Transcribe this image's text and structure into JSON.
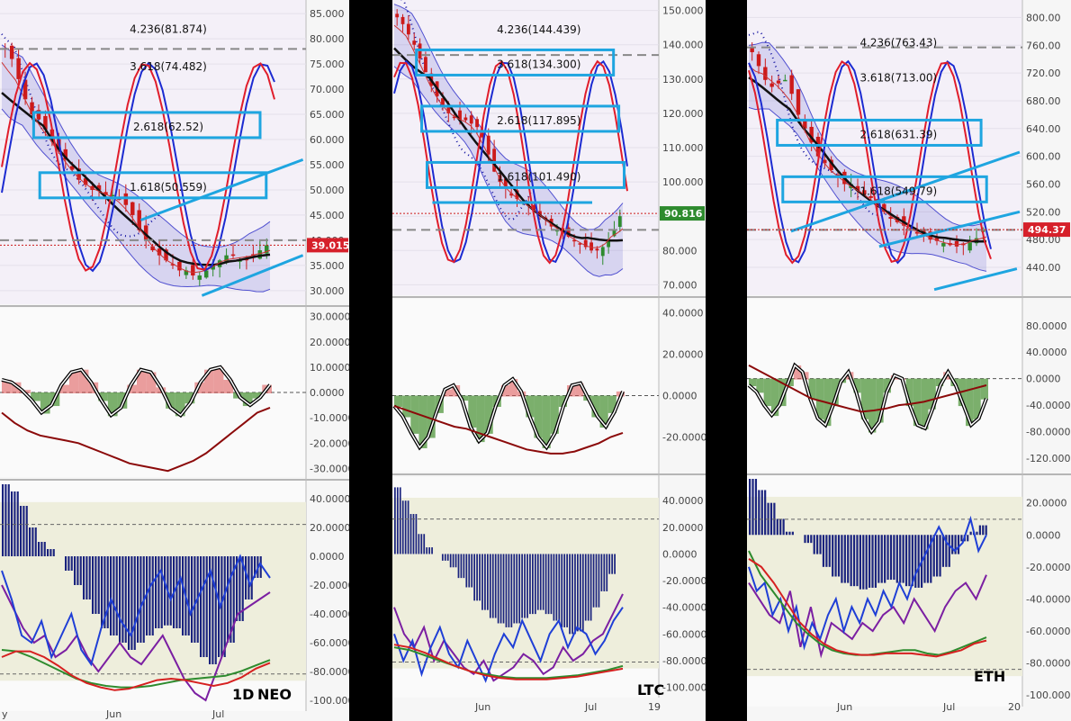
{
  "chart_data": [
    {
      "type": "candlestick",
      "asset_label": "NEO",
      "timeframe_label": "1D",
      "date_ticks": [
        "y",
        "Jun",
        "Jul"
      ],
      "price_ticks": [
        "85.000",
        "80.000",
        "75.000",
        "70.000",
        "65.000",
        "60.000",
        "55.000",
        "50.000",
        "45.000",
        "40.000",
        "35.000",
        "30.000"
      ],
      "price_range": [
        28,
        87
      ],
      "last_price": "39.015",
      "fib_levels": [
        {
          "label": "4.236(81.874)",
          "price": 81.874,
          "boxed": false
        },
        {
          "label": "3.618(74.482)",
          "price": 74.482,
          "boxed": false
        },
        {
          "label": "2.618(62.52)",
          "price": 62.52,
          "boxed": true
        },
        {
          "label": "1.618(50.559)",
          "price": 50.559,
          "boxed": true
        }
      ],
      "dashed_level": 78,
      "support_level": 40,
      "close": [
        78,
        76,
        72,
        68,
        65,
        64,
        62,
        60,
        58,
        56,
        54,
        52,
        51,
        50,
        50,
        49,
        49,
        48,
        47,
        45,
        42,
        40,
        38,
        37,
        36,
        35,
        34,
        34,
        33,
        33,
        34,
        35,
        36,
        37,
        37,
        36,
        36,
        37,
        38,
        39
      ],
      "trend_lines": [
        {
          "from": [
            0.46,
            44
          ],
          "to": [
            0.99,
            56
          ]
        },
        {
          "from": [
            0.66,
            29
          ],
          "to": [
            0.99,
            37
          ]
        }
      ],
      "osc_ticks": [
        "30.0000",
        "20.0000",
        "10.0000",
        "0.0000",
        "-10.0000",
        "-20.0000",
        "-30.0000"
      ],
      "osc_range": [
        -32,
        32
      ],
      "osc": [
        5,
        4,
        1,
        -3,
        -8,
        -5,
        3,
        8,
        9,
        4,
        -3,
        -9,
        -6,
        3,
        9,
        8,
        2,
        -6,
        -9,
        -4,
        4,
        9,
        10,
        5,
        -2,
        -5,
        -2,
        3
      ],
      "osc_slow": [
        -8,
        -12,
        -15,
        -17,
        -18,
        -19,
        -20,
        -22,
        -24,
        -26,
        -28,
        -29,
        -30,
        -31,
        -29,
        -27,
        -24,
        -20,
        -16,
        -12,
        -8,
        -6
      ],
      "mom_ticks": [
        "40.0000",
        "20.0000",
        "0.0000",
        "-20.0000",
        "-40.0000",
        "-60.0000",
        "-80.0000",
        "-100.0000"
      ],
      "mom_range": [
        -105,
        50
      ],
      "mom_hist": [
        50,
        45,
        35,
        20,
        10,
        5,
        0,
        -10,
        -20,
        -30,
        -40,
        -50,
        -55,
        -60,
        -65,
        -60,
        -55,
        -50,
        -48,
        -50,
        -55,
        -60,
        -70,
        -75,
        -70,
        -60,
        -45,
        -30,
        -15,
        0
      ],
      "mom_fast": [
        -10,
        -30,
        -55,
        -60,
        -45,
        -70,
        -55,
        -40,
        -65,
        -75,
        -50,
        -30,
        -45,
        -55,
        -35,
        -20,
        -10,
        -30,
        -15,
        -40,
        -25,
        -10,
        -35,
        -15,
        0,
        -20,
        -5,
        -15
      ],
      "mom_slow": [
        -20,
        -35,
        -50,
        -60,
        -55,
        -70,
        -65,
        -55,
        -70,
        -80,
        -70,
        -60,
        -70,
        -75,
        -65,
        -55,
        -70,
        -85,
        -95,
        -100,
        -80,
        -60,
        -40,
        -35,
        -30,
        -25
      ],
      "mom_green": [
        -65,
        -66,
        -70,
        -75,
        -80,
        -85,
        -88,
        -90,
        -91,
        -91,
        -90,
        -88,
        -86,
        -85,
        -84,
        -83,
        -80,
        -76,
        -72
      ],
      "mom_red": [
        -70,
        -66,
        -66,
        -70,
        -76,
        -83,
        -88,
        -91,
        -93,
        -92,
        -89,
        -86,
        -85,
        -86,
        -88,
        -90,
        -88,
        -84,
        -78,
        -74
      ]
    },
    {
      "type": "candlestick",
      "asset_label": "LTC",
      "date_ticks": [
        "Jun",
        "Jul",
        "19"
      ],
      "price_ticks": [
        "150.000",
        "140.000",
        "130.000",
        "120.000",
        "110.000",
        "100.000",
        "90.000",
        "80.000",
        "70.000"
      ],
      "price_range": [
        68,
        152
      ],
      "last_price": "90.816",
      "fib_levels": [
        {
          "label": "4.236(144.439)",
          "price": 144.439,
          "boxed": false
        },
        {
          "label": "3.618(134.300)",
          "price": 134.3,
          "boxed": true
        },
        {
          "label": "2.618(117.895)",
          "price": 117.895,
          "boxed": true
        },
        {
          "label": "1.618(101.490)",
          "price": 101.49,
          "boxed": true
        }
      ],
      "dashed_level": 137,
      "support_level": 86,
      "close": [
        148,
        146,
        143,
        140,
        136,
        132,
        128,
        125,
        122,
        120,
        119,
        118,
        118,
        117,
        116,
        113,
        108,
        103,
        100,
        98,
        96,
        95,
        94,
        93,
        92,
        90,
        89,
        87,
        86,
        85,
        84,
        83,
        82,
        81,
        80,
        80,
        81,
        83,
        86,
        90
      ],
      "trend_lines": [
        {
          "from": [
            0.15,
            94
          ],
          "to": [
            0.75,
            94
          ]
        }
      ],
      "osc_ticks": [
        "40.0000",
        "20.0000",
        "0.0000",
        "-20.0000"
      ],
      "osc_range": [
        -35,
        45
      ],
      "osc": [
        -5,
        -10,
        -18,
        -25,
        -20,
        -8,
        3,
        5,
        -2,
        -15,
        -22,
        -18,
        -5,
        5,
        8,
        2,
        -10,
        -20,
        -25,
        -18,
        -5,
        5,
        6,
        -2,
        -10,
        -15,
        -8,
        2
      ],
      "osc_slow": [
        -5,
        -7,
        -9,
        -11,
        -13,
        -15,
        -16,
        -18,
        -20,
        -22,
        -24,
        -26,
        -27,
        -28,
        -28,
        -27,
        -25,
        -23,
        -20,
        -18
      ],
      "mom_ticks": [
        "40.0000",
        "20.0000",
        "0.0000",
        "-20.0000",
        "-40.0000",
        "-60.0000",
        "-80.0000",
        "-100.0000"
      ],
      "mom_range": [
        -105,
        55
      ],
      "mom_hist": [
        50,
        40,
        30,
        15,
        5,
        0,
        -5,
        -10,
        -18,
        -25,
        -35,
        -42,
        -48,
        -52,
        -55,
        -52,
        -48,
        -45,
        -42,
        -45,
        -50,
        -55,
        -60,
        -58,
        -50,
        -40,
        -28,
        -15,
        0
      ],
      "mom_fast": [
        -60,
        -80,
        -65,
        -90,
        -70,
        -55,
        -75,
        -85,
        -65,
        -80,
        -95,
        -75,
        -60,
        -70,
        -50,
        -65,
        -80,
        -60,
        -50,
        -70,
        -55,
        -60,
        -75,
        -65,
        -50,
        -40
      ],
      "mom_slow": [
        -40,
        -60,
        -70,
        -55,
        -80,
        -65,
        -75,
        -85,
        -90,
        -80,
        -95,
        -90,
        -85,
        -75,
        -80,
        -90,
        -85,
        -70,
        -80,
        -75,
        -65,
        -60,
        -45,
        -30
      ],
      "mom_green": [
        -70,
        -72,
        -76,
        -80,
        -84,
        -88,
        -90,
        -92,
        -93,
        -93,
        -93,
        -92,
        -91,
        -89,
        -87,
        -84
      ],
      "mom_red": [
        -68,
        -70,
        -74,
        -79,
        -84,
        -88,
        -91,
        -93,
        -94,
        -94,
        -94,
        -93,
        -92,
        -90,
        -88,
        -86
      ]
    },
    {
      "type": "candlestick",
      "asset_label": "ETH",
      "date_ticks": [
        "Jun",
        "Jul",
        "20"
      ],
      "price_ticks": [
        "800.00",
        "760.00",
        "720.00",
        "680.00",
        "640.00",
        "600.00",
        "560.00",
        "520.00",
        "480.00",
        "440.00"
      ],
      "price_range": [
        405,
        820
      ],
      "last_price": "494.37",
      "fib_levels": [
        {
          "label": "4.236(763.43)",
          "price": 763.43,
          "boxed": false
        },
        {
          "label": "3.618(713.00)",
          "price": 713.0,
          "boxed": false
        },
        {
          "label": "2.618(631.39)",
          "price": 631.39,
          "boxed": true
        },
        {
          "label": "1.618(549.79)",
          "price": 549.79,
          "boxed": true
        }
      ],
      "dashed_level": 757,
      "support_level": 494,
      "close": [
        750,
        730,
        710,
        700,
        705,
        710,
        690,
        660,
        640,
        620,
        600,
        590,
        580,
        570,
        560,
        560,
        550,
        545,
        540,
        530,
        520,
        510,
        505,
        500,
        495,
        490,
        485,
        480,
        478,
        475,
        472,
        470,
        472,
        476,
        482,
        494
      ],
      "trend_lines": [
        {
          "from": [
            0.16,
            492
          ],
          "to": [
            0.99,
            606
          ]
        },
        {
          "from": [
            0.48,
            470
          ],
          "to": [
            0.99,
            520
          ]
        },
        {
          "from": [
            0.68,
            408
          ],
          "to": [
            0.98,
            438
          ]
        }
      ],
      "osc_ticks": [
        "80.0000",
        "40.0000",
        "0.0000",
        "-40.0000",
        "-80.0000",
        "-120.0000"
      ],
      "osc_range": [
        -135,
        115
      ],
      "osc": [
        -10,
        -20,
        -40,
        -55,
        -40,
        -10,
        20,
        10,
        -30,
        -60,
        -70,
        -40,
        -5,
        10,
        -20,
        -60,
        -80,
        -65,
        -20,
        5,
        0,
        -40,
        -70,
        -75,
        -45,
        -10,
        10,
        -10,
        -40,
        -70,
        -60,
        -30
      ],
      "osc_slow": [
        20,
        10,
        0,
        -10,
        -20,
        -30,
        -35,
        -40,
        -45,
        -50,
        -48,
        -45,
        -40,
        -38,
        -35,
        -30,
        -25,
        -20,
        -15,
        -10
      ],
      "mom_ticks": [
        "20.0000",
        "0.0000",
        "-20.0000",
        "-40.0000",
        "-60.0000",
        "-80.0000",
        "-100.0000"
      ],
      "mom_range": [
        -105,
        35
      ],
      "mom_hist": [
        35,
        28,
        20,
        10,
        2,
        0,
        -5,
        -12,
        -20,
        -26,
        -30,
        -32,
        -34,
        -33,
        -30,
        -28,
        -30,
        -32,
        -33,
        -30,
        -26,
        -20,
        -12,
        -4,
        2,
        6
      ],
      "mom_fast": [
        -20,
        -35,
        -30,
        -50,
        -40,
        -60,
        -45,
        -70,
        -55,
        -65,
        -50,
        -40,
        -60,
        -45,
        -55,
        -40,
        -50,
        -35,
        -45,
        -30,
        -40,
        -25,
        -15,
        -5,
        5,
        -5,
        -10,
        -5,
        10,
        -10,
        0
      ],
      "mom_slow": [
        -30,
        -40,
        -50,
        -55,
        -35,
        -70,
        -45,
        -75,
        -55,
        -60,
        -65,
        -55,
        -60,
        -50,
        -45,
        -55,
        -40,
        -50,
        -60,
        -45,
        -35,
        -30,
        -40,
        -25
      ],
      "mom_green": [
        -10,
        -25,
        -35,
        -45,
        -55,
        -62,
        -68,
        -72,
        -74,
        -75,
        -75,
        -74,
        -73,
        -72,
        -72,
        -74,
        -75,
        -73,
        -70,
        -67,
        -64
      ],
      "mom_red": [
        -15,
        -20,
        -30,
        -42,
        -54,
        -62,
        -68,
        -72,
        -74,
        -75,
        -75,
        -74,
        -74,
        -74,
        -75,
        -76,
        -74,
        -72,
        -68,
        -66
      ]
    }
  ]
}
